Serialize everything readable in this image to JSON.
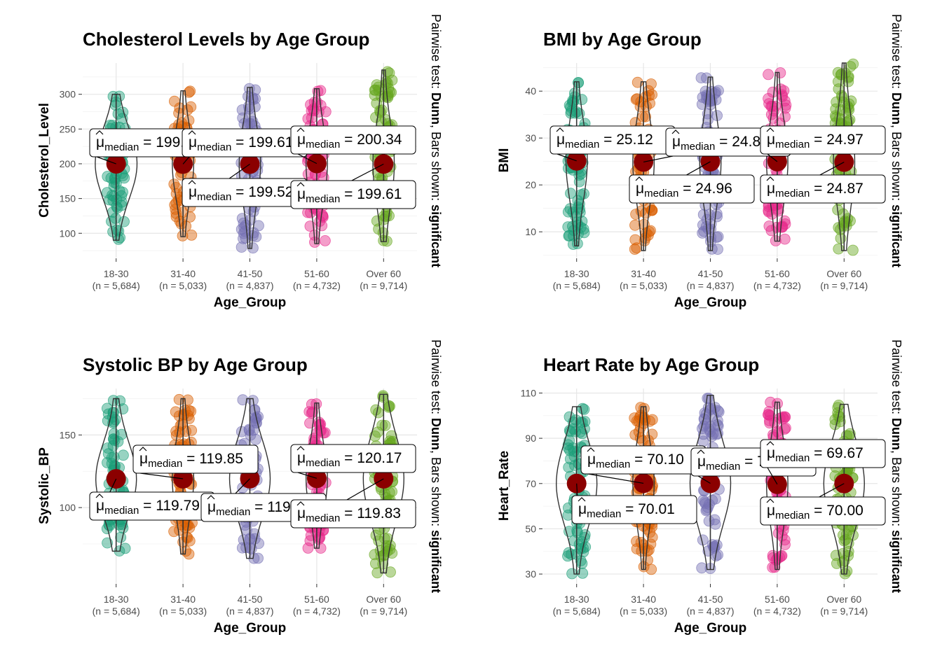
{
  "groups": [
    {
      "name": "18-30",
      "n": "(n = 5,684)"
    },
    {
      "name": "31-40",
      "n": "(n = 5,033)"
    },
    {
      "name": "41-50",
      "n": "(n = 4,837)"
    },
    {
      "name": "51-60",
      "n": "(n = 4,732)"
    },
    {
      "name": "Over 60",
      "n": "(n = 9,714)"
    }
  ],
  "colors": [
    "#1b9e77",
    "#d95f02",
    "#7570b3",
    "#e7298a",
    "#66a61e"
  ],
  "mean_marker_color": "#8b0000",
  "side_text": {
    "prefix": "Pairwise test: ",
    "test": "Dunn",
    "middle": ", Bars shown: ",
    "shown": "significant"
  },
  "label_parts": {
    "mu": "μ",
    "sub": "median",
    "eq": " = "
  },
  "chart_data": [
    {
      "type": "violin",
      "title": "Cholesterol Levels by Age Group",
      "xlabel": "Age_Group",
      "ylabel": "Cholesterol_Level",
      "ylim": [
        65,
        345
      ],
      "yticks": [
        100,
        150,
        200,
        250,
        300
      ],
      "categories": [
        "18-30",
        "31-40",
        "41-50",
        "51-60",
        "Over 60"
      ],
      "medians": [
        199.88,
        199.61,
        199.52,
        200.34,
        199.61
      ],
      "median_labels": [
        "199.88",
        "199.61",
        "199.52",
        "200.34",
        "199.61"
      ],
      "min": [
        90,
        95,
        78,
        85,
        88
      ],
      "max": [
        300,
        305,
        310,
        308,
        335
      ],
      "violin_halfwidth": [
        0.33,
        0.16,
        0.16,
        0.16,
        0.16
      ],
      "box": [
        180,
        200
      ]
    },
    {
      "type": "violin",
      "title": "BMI by Age Group",
      "xlabel": "Age_Group",
      "ylabel": "BMI",
      "ylim": [
        4.5,
        46
      ],
      "yticks": [
        10,
        20,
        30,
        40
      ],
      "categories": [
        "18-30",
        "31-40",
        "41-50",
        "51-60",
        "Over 60"
      ],
      "medians": [
        25.12,
        24.89,
        24.96,
        24.97,
        24.87
      ],
      "median_labels": [
        "25.12",
        "24.89",
        "24.96",
        "24.97",
        "24.87"
      ],
      "min": [
        7,
        6,
        6,
        8,
        6
      ],
      "max": [
        42,
        42,
        43,
        44,
        46
      ],
      "violin_halfwidth": [
        0.16,
        0.16,
        0.16,
        0.16,
        0.16
      ],
      "box": [
        22,
        25
      ]
    },
    {
      "type": "violin",
      "title": "Systolic BP by Age Group",
      "xlabel": "Age_Group",
      "ylabel": "Systolic_BP",
      "ylim": [
        48,
        182
      ],
      "yticks": [
        100,
        150
      ],
      "categories": [
        "18-30",
        "31-40",
        "41-50",
        "51-60",
        "Over 60"
      ],
      "medians": [
        119.79,
        119.85,
        119.9,
        120.17,
        119.83
      ],
      "median_labels": [
        "119.79",
        "119.85",
        "119.90",
        "120.17",
        "119.83"
      ],
      "min": [
        70,
        68,
        65,
        72,
        55
      ],
      "max": [
        175,
        175,
        175,
        172,
        178
      ],
      "violin_halfwidth": [
        0.32,
        0.16,
        0.32,
        0.16,
        0.32
      ],
      "box": [
        120,
        130
      ]
    },
    {
      "type": "violin",
      "title": "Heart Rate by Age Group",
      "xlabel": "Age_Group",
      "ylabel": "Heart_Rate",
      "ylim": [
        26,
        112
      ],
      "yticks": [
        30,
        50,
        70,
        90,
        110
      ],
      "categories": [
        "18-30",
        "31-40",
        "41-50",
        "51-60",
        "Over 60"
      ],
      "medians": [
        70.01,
        70.1,
        70.09,
        69.67,
        70.0
      ],
      "median_labels": [
        "70.01",
        "70.10",
        "70.09",
        "69.67",
        "70.00"
      ],
      "min": [
        30,
        32,
        32,
        32,
        30
      ],
      "max": [
        104,
        104,
        109,
        106,
        105
      ],
      "violin_halfwidth": [
        0.32,
        0.16,
        0.32,
        0.16,
        0.32
      ],
      "box": [
        63,
        76
      ]
    }
  ]
}
